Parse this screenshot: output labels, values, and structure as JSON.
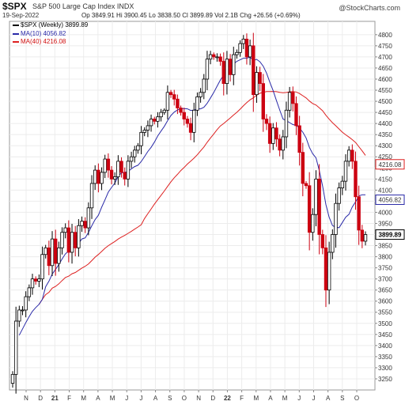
{
  "header": {
    "symbol": "$SPX",
    "name": "S&P 500 Large Cap Index INDX",
    "brand": "@StockCharts.com",
    "date": "19-Sep-2022",
    "ohlc": "Op 3849.91  Hi 3900.45  Lo 3838.50  Cl 3899.89  Vol 2.1B  Chg +26.56 (+0.69%)"
  },
  "legend": {
    "price": "$SPX (Weekly) 3899.89",
    "ma10": "MA(10) 4056.82",
    "ma40": "MA(40) 4216.08"
  },
  "colors": {
    "up": "#000000",
    "down": "#cc0011",
    "ma10": "#2a2aa8",
    "ma40": "#dd2020"
  },
  "chart_data": {
    "type": "candlestick",
    "title": "$SPX S&P 500 Large Cap Index INDX",
    "ylim": [
      3200,
      4860
    ],
    "y_ticks": [
      3250,
      3300,
      3350,
      3400,
      3450,
      3500,
      3550,
      3600,
      3650,
      3700,
      3750,
      3800,
      3850,
      3900,
      3950,
      4000,
      4050,
      4100,
      4150,
      4200,
      4250,
      4300,
      4350,
      4400,
      4450,
      4500,
      4550,
      4600,
      4650,
      4700,
      4750,
      4800
    ],
    "x_labels": [
      "N",
      "D",
      "21",
      "F",
      "M",
      "A",
      "M",
      "J",
      "J",
      "A",
      "S",
      "O",
      "N",
      "D",
      "22",
      "F",
      "M",
      "A",
      "M",
      "J",
      "J",
      "A",
      "S",
      "O"
    ],
    "price_tags": [
      {
        "label": "4216.08",
        "value": 4216.08,
        "series": "ma40"
      },
      {
        "label": "4056.82",
        "value": 4056.82,
        "series": "ma10"
      },
      {
        "label": "3899.89",
        "value": 3899.89,
        "series": "price"
      }
    ],
    "ma10_last": 4056.82,
    "ma40_last": 4216.08,
    "weekly_close": [
      3270,
      3510,
      3560,
      3560,
      3620,
      3660,
      3700,
      3690,
      3700,
      3810,
      3840,
      3760,
      3880,
      3770,
      3840,
      3910,
      3930,
      3820,
      3910,
      3840,
      3940,
      3960,
      3930,
      4020,
      4130,
      4190,
      4130,
      4180,
      4240,
      4190,
      4150,
      4160,
      4230,
      4180,
      4150,
      4230,
      4250,
      4280,
      4300,
      4360,
      4370,
      4390,
      4420,
      4410,
      4430,
      4450,
      4460,
      4540,
      4530,
      4510,
      4470,
      4450,
      4420,
      4400,
      4360,
      4460,
      4520,
      4540,
      4600,
      4690,
      4710,
      4700,
      4700,
      4680,
      4580,
      4690,
      4620,
      4710,
      4720,
      4760,
      4780,
      4700,
      4750,
      4530,
      4630,
      4580,
      4420,
      4400,
      4310,
      4380,
      4330,
      4280,
      4340,
      4460,
      4540,
      4490,
      4390,
      4270,
      4130,
      4120,
      3910,
      3990,
      4150,
      3900,
      3840,
      3650,
      3820,
      3900,
      4040,
      4110,
      4140,
      4230,
      4280,
      4230,
      4070,
      3920,
      3870,
      3900
    ]
  }
}
